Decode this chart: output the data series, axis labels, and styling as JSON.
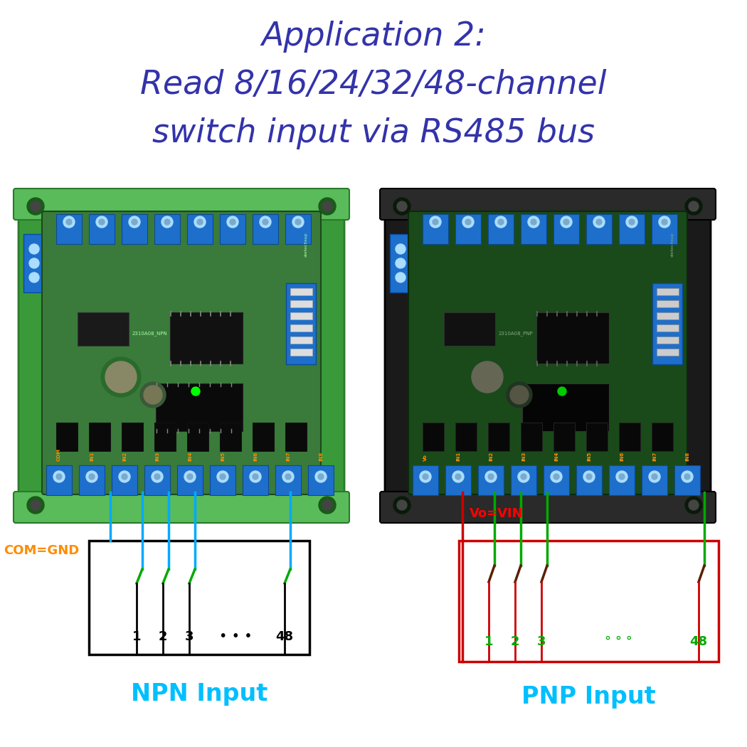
{
  "title_line1": "Application 2:",
  "title_line2": "Read 8/16/24/32/48-channel",
  "title_line3": "switch input via RS485 bus",
  "title_color": "#3333AA",
  "bg_color": "#FFFFFF",
  "npn_label": "NPN Input",
  "pnp_label": "PNP Input",
  "label_color": "#00BFFF",
  "com_gnd_text": "COM=GND",
  "com_gnd_color": "#FF8C00",
  "vo_vin_text": "Vo=VIN",
  "vo_vin_color": "#FF0000",
  "npn_box_color": "#000000",
  "pnp_box_color": "#CC0000",
  "wire_color_npn_blue": "#00AAFF",
  "wire_color_npn_green": "#00AA00",
  "wire_color_pnp_red": "#CC0000",
  "wire_color_pnp_green": "#00AA00",
  "wire_color_pnp_dark": "#5A2000",
  "channel_color_npn": "#000000",
  "channel_color_pnp": "#00AA00",
  "dots_color_npn": "#000000",
  "dots_color_pnp": "#00AA00",
  "npn_rail_color": "#3A9A3A",
  "npn_rail_dark": "#2A7A2A",
  "npn_pcb_color": "#4A8A4A",
  "npn_pcb_dark": "#2A5A2A",
  "pnp_rail_color": "#222222",
  "pnp_rail_dark": "#111111",
  "pnp_pcb_color": "#1A3A1A",
  "blue_terminal": "#1E6FCC",
  "blue_terminal_dark": "#0A4A99",
  "title_fontsize": 33,
  "label_fontsize": 24,
  "num_fontsize": 13,
  "comgnd_fontsize": 13,
  "vovin_fontsize": 13
}
